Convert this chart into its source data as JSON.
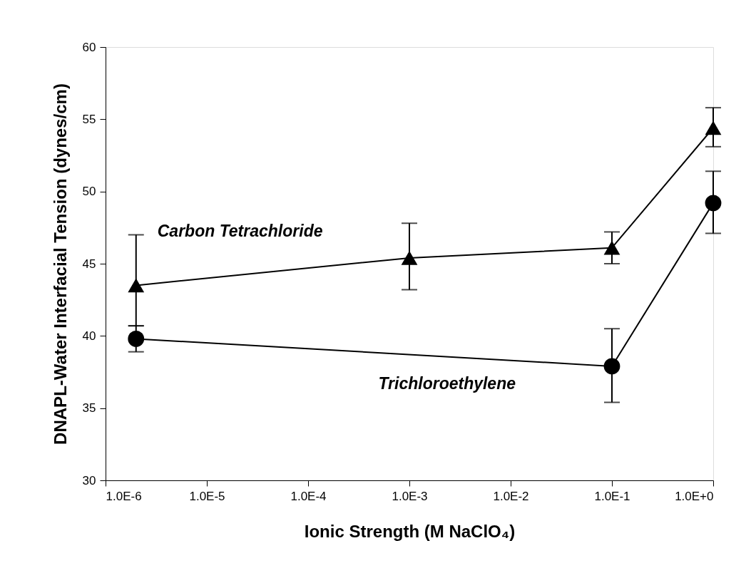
{
  "chart_data": {
    "type": "line",
    "xlabel": "Ionic Strength (M NaClO₄)",
    "ylabel": "DNAPL-Water Interfacial Tension (dynes/cm)",
    "log": "x",
    "xlim": [
      1e-06,
      1
    ],
    "ylim": [
      30,
      60
    ],
    "yticks": [
      30,
      35,
      40,
      45,
      50,
      55,
      60
    ],
    "xticks": [
      {
        "value": 1e-06,
        "label": "1.0E-6"
      },
      {
        "value": 1e-05,
        "label": "1.0E-5"
      },
      {
        "value": 0.0001,
        "label": "1.0E-4"
      },
      {
        "value": 0.001,
        "label": "1.0E-3"
      },
      {
        "value": 0.01,
        "label": "1.0E-2"
      },
      {
        "value": 0.1,
        "label": "1.0E-1"
      },
      {
        "value": 1,
        "label": "1.0E+0"
      }
    ],
    "grid": false,
    "legend": false,
    "series": [
      {
        "name": "Carbon Tetrachloride",
        "color": "#000000",
        "marker": "triangle",
        "x": [
          2e-06,
          0.001,
          0.1,
          1
        ],
        "values": [
          43.5,
          45.4,
          46.1,
          54.4
        ],
        "errors": [
          [
            40.7,
            47.0
          ],
          [
            43.2,
            47.8
          ],
          [
            45.0,
            47.2
          ],
          [
            53.1,
            55.8
          ]
        ]
      },
      {
        "name": "Trichloroethylene",
        "color": "#000000",
        "marker": "circle",
        "x": [
          2e-06,
          0.1,
          1
        ],
        "values": [
          39.8,
          37.9,
          49.2
        ],
        "errors": [
          [
            38.9,
            40.7
          ],
          [
            35.4,
            40.5
          ],
          [
            47.1,
            51.4
          ]
        ]
      }
    ]
  }
}
